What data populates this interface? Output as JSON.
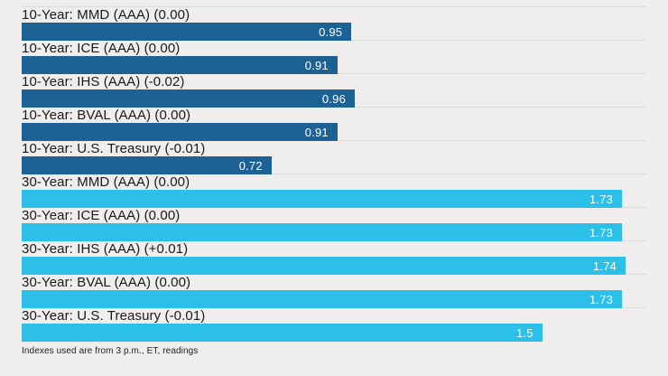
{
  "chart_data": {
    "type": "bar",
    "orientation": "horizontal",
    "title": "",
    "xlabel": "",
    "ylabel": "",
    "xlim": [
      0,
      1.8
    ],
    "grid": false,
    "legend": "none",
    "colors": {
      "10-year": "#1c6295",
      "30-year": "#2cc0e8"
    },
    "rows": [
      {
        "label": "10-Year: MMD (AAA) (0.00)",
        "value": 0.95,
        "display": "0.95",
        "group": "10-year"
      },
      {
        "label": "10-Year: ICE (AAA) (0.00)",
        "value": 0.91,
        "display": "0.91",
        "group": "10-year"
      },
      {
        "label": "10-Year: IHS (AAA) (-0.02)",
        "value": 0.96,
        "display": "0.96",
        "group": "10-year"
      },
      {
        "label": "10-Year: BVAL (AAA) (0.00)",
        "value": 0.91,
        "display": "0.91",
        "group": "10-year"
      },
      {
        "label": "10-Year: U.S. Treasury (-0.01)",
        "value": 0.72,
        "display": "0.72",
        "group": "10-year"
      },
      {
        "label": "30-Year: MMD (AAA) (0.00)",
        "value": 1.73,
        "display": "1.73",
        "group": "30-year"
      },
      {
        "label": "30-Year: ICE (AAA) (0.00)",
        "value": 1.73,
        "display": "1.73",
        "group": "30-year"
      },
      {
        "label": "30-Year: IHS (AAA) (+0.01)",
        "value": 1.74,
        "display": "1.74",
        "group": "30-year"
      },
      {
        "label": "30-Year: BVAL (AAA) (0.00)",
        "value": 1.73,
        "display": "1.73",
        "group": "30-year"
      },
      {
        "label": "30-Year: U.S. Treasury (-0.01)",
        "value": 1.5,
        "display": "1.5",
        "group": "30-year"
      }
    ],
    "footnote": "Indexes used are from 3 p.m., ET, readings"
  }
}
